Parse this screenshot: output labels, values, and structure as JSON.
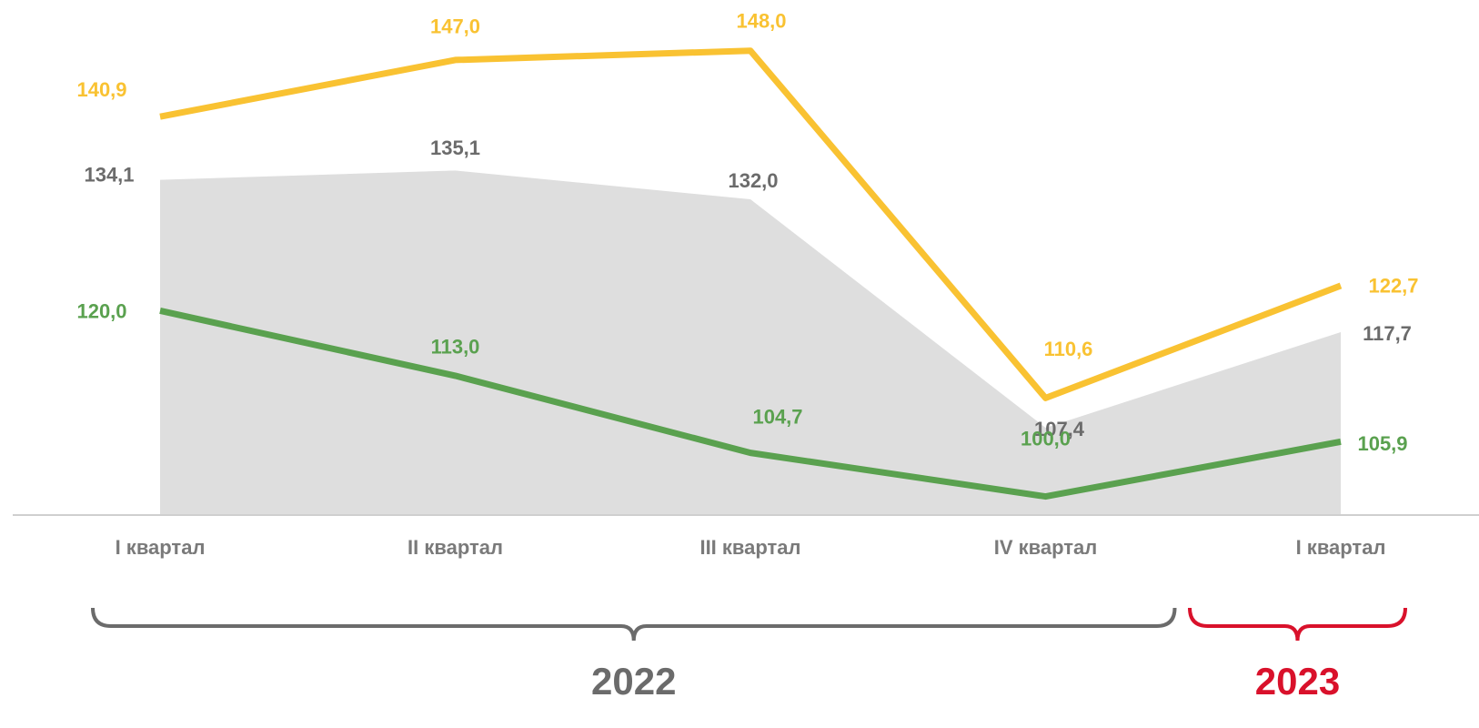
{
  "chart_data": {
    "type": "line",
    "categories": [
      "I квартал",
      "II квартал",
      "III квартал",
      "IV квартал",
      "I квартал"
    ],
    "series": [
      {
        "style": "area",
        "color": "#dedede",
        "label_color": "#6b6b6b",
        "values": [
          134.1,
          135.1,
          132.0,
          107.4,
          117.7
        ],
        "value_labels": [
          "134,1",
          "135,1",
          "132,0",
          "107,4",
          "117,7"
        ]
      },
      {
        "style": "line",
        "color": "#f9c232",
        "label_color": "#f9c232",
        "values": [
          140.9,
          147.0,
          148.0,
          110.6,
          122.7
        ],
        "value_labels": [
          "140,9",
          "147,0",
          "148,0",
          "110,6",
          "122,7"
        ]
      },
      {
        "style": "line",
        "color": "#5aa14f",
        "label_color": "#5aa14f",
        "values": [
          120.0,
          113.0,
          104.7,
          100.0,
          105.9
        ],
        "value_labels": [
          "120,0",
          "113,0",
          "104,7",
          "100,0",
          "105,9"
        ]
      }
    ],
    "ylim": [
      98,
      151.5
    ],
    "groups": [
      {
        "label": "2022",
        "color": "#6b6b6b",
        "first": 0,
        "last": 3
      },
      {
        "label": "2023",
        "color": "#d9112b",
        "first": 4,
        "last": 4
      }
    ]
  }
}
